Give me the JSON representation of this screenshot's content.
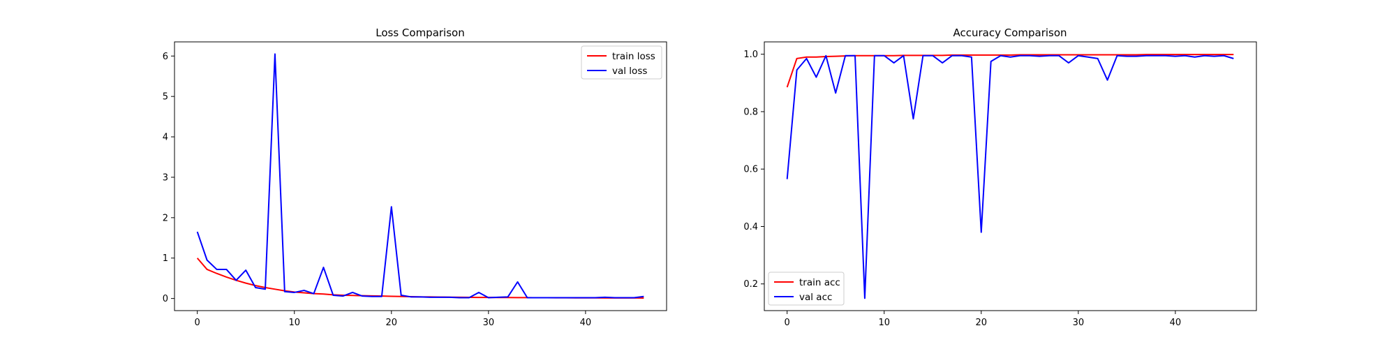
{
  "chart_data": [
    {
      "type": "line",
      "title": "Loss Comparison",
      "xlabel": "",
      "ylabel": "",
      "xlim": [
        -2.35,
        48.35
      ],
      "ylim": [
        -0.3,
        6.35
      ],
      "xticks": [
        0,
        10,
        20,
        30,
        40
      ],
      "yticks": [
        0,
        1,
        2,
        3,
        4,
        5,
        6
      ],
      "ytick_labels": [
        "0",
        "1",
        "2",
        "3",
        "4",
        "5",
        "6"
      ],
      "grid": false,
      "legend_position": "top-right",
      "x": [
        0,
        1,
        2,
        3,
        4,
        5,
        6,
        7,
        8,
        9,
        10,
        11,
        12,
        13,
        14,
        15,
        16,
        17,
        18,
        19,
        20,
        21,
        22,
        23,
        24,
        25,
        26,
        27,
        28,
        29,
        30,
        31,
        32,
        33,
        34,
        35,
        36,
        37,
        38,
        39,
        40,
        41,
        42,
        43,
        44,
        45,
        46
      ],
      "series": [
        {
          "name": "train loss",
          "color": "#ff0000",
          "values": [
            1.0,
            0.72,
            0.62,
            0.53,
            0.45,
            0.38,
            0.32,
            0.27,
            0.23,
            0.19,
            0.16,
            0.14,
            0.12,
            0.11,
            0.09,
            0.08,
            0.075,
            0.07,
            0.065,
            0.06,
            0.055,
            0.05,
            0.045,
            0.04,
            0.038,
            0.035,
            0.033,
            0.03,
            0.028,
            0.026,
            0.025,
            0.024,
            0.023,
            0.022,
            0.021,
            0.02,
            0.019,
            0.018,
            0.017,
            0.016,
            0.015,
            0.015,
            0.014,
            0.014,
            0.013,
            0.013,
            0.012
          ]
        },
        {
          "name": "val loss",
          "color": "#0000ff",
          "values": [
            1.65,
            0.95,
            0.72,
            0.72,
            0.45,
            0.7,
            0.27,
            0.23,
            6.05,
            0.17,
            0.15,
            0.2,
            0.12,
            0.77,
            0.08,
            0.06,
            0.15,
            0.06,
            0.05,
            0.05,
            2.27,
            0.08,
            0.04,
            0.04,
            0.03,
            0.03,
            0.03,
            0.02,
            0.02,
            0.15,
            0.02,
            0.03,
            0.04,
            0.41,
            0.02,
            0.02,
            0.02,
            0.02,
            0.02,
            0.02,
            0.02,
            0.02,
            0.03,
            0.02,
            0.02,
            0.02,
            0.05
          ]
        }
      ]
    },
    {
      "type": "line",
      "title": "Accuracy Comparison",
      "xlabel": "",
      "ylabel": "",
      "xlim": [
        -2.35,
        48.35
      ],
      "ylim": [
        0.107,
        1.043
      ],
      "xticks": [
        0,
        10,
        20,
        30,
        40
      ],
      "yticks": [
        0.2,
        0.4,
        0.6,
        0.8,
        1.0
      ],
      "ytick_labels": [
        "0.2",
        "0.4",
        "0.6",
        "0.8",
        "1.0"
      ],
      "grid": false,
      "legend_position": "bottom-left",
      "x": [
        0,
        1,
        2,
        3,
        4,
        5,
        6,
        7,
        8,
        9,
        10,
        11,
        12,
        13,
        14,
        15,
        16,
        17,
        18,
        19,
        20,
        21,
        22,
        23,
        24,
        25,
        26,
        27,
        28,
        29,
        30,
        31,
        32,
        33,
        34,
        35,
        36,
        37,
        38,
        39,
        40,
        41,
        42,
        43,
        44,
        45,
        46
      ],
      "series": [
        {
          "name": "train acc",
          "color": "#ff0000",
          "values": [
            0.885,
            0.985,
            0.99,
            0.99,
            0.992,
            0.993,
            0.994,
            0.995,
            0.995,
            0.995,
            0.995,
            0.995,
            0.996,
            0.996,
            0.996,
            0.996,
            0.996,
            0.997,
            0.997,
            0.997,
            0.997,
            0.997,
            0.997,
            0.997,
            0.998,
            0.998,
            0.998,
            0.998,
            0.998,
            0.998,
            0.998,
            0.998,
            0.998,
            0.998,
            0.998,
            0.998,
            0.998,
            0.999,
            0.999,
            0.999,
            0.999,
            0.999,
            0.999,
            0.999,
            0.999,
            0.999,
            0.999
          ]
        },
        {
          "name": "val acc",
          "color": "#0000ff",
          "values": [
            0.565,
            0.945,
            0.985,
            0.92,
            0.995,
            0.865,
            0.995,
            0.995,
            0.15,
            0.995,
            0.995,
            0.97,
            0.995,
            0.775,
            0.995,
            0.995,
            0.97,
            0.995,
            0.995,
            0.99,
            0.38,
            0.975,
            0.995,
            0.99,
            0.995,
            0.995,
            0.993,
            0.995,
            0.995,
            0.97,
            0.995,
            0.99,
            0.985,
            0.91,
            0.995,
            0.993,
            0.993,
            0.995,
            0.995,
            0.995,
            0.993,
            0.995,
            0.99,
            0.995,
            0.993,
            0.995,
            0.985
          ]
        }
      ]
    }
  ]
}
